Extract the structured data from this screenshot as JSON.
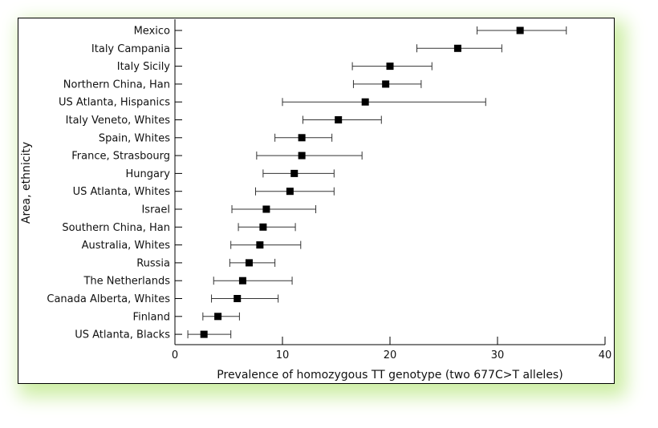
{
  "chart_data": {
    "type": "scatter",
    "title": "",
    "xlabel": "Prevalence of homozygous TT genotype (two 677C>T alleles)",
    "ylabel": "Area, ethnicity",
    "xlim": [
      0,
      40
    ],
    "xticks": [
      0,
      10,
      20,
      30,
      40
    ],
    "grid": false,
    "points": [
      {
        "label": "Mexico",
        "value": 32.1,
        "lower": 28.1,
        "upper": 36.4
      },
      {
        "label": "Italy Campania",
        "value": 26.3,
        "lower": 22.5,
        "upper": 30.4
      },
      {
        "label": "Italy Sicily",
        "value": 20.0,
        "lower": 16.5,
        "upper": 23.9
      },
      {
        "label": "Northern China, Han",
        "value": 19.6,
        "lower": 16.6,
        "upper": 22.9
      },
      {
        "label": "US Atlanta, Hispanics",
        "value": 17.7,
        "lower": 10.0,
        "upper": 28.9
      },
      {
        "label": "Italy Veneto, Whites",
        "value": 15.2,
        "lower": 11.9,
        "upper": 19.2
      },
      {
        "label": "Spain, Whites",
        "value": 11.8,
        "lower": 9.3,
        "upper": 14.6
      },
      {
        "label": "France, Strasbourg",
        "value": 11.8,
        "lower": 7.6,
        "upper": 17.4
      },
      {
        "label": "Hungary",
        "value": 11.1,
        "lower": 8.2,
        "upper": 14.8
      },
      {
        "label": "US Atlanta, Whites",
        "value": 10.7,
        "lower": 7.5,
        "upper": 14.8
      },
      {
        "label": "Israel",
        "value": 8.5,
        "lower": 5.3,
        "upper": 13.1
      },
      {
        "label": "Southern China, Han",
        "value": 8.2,
        "lower": 5.9,
        "upper": 11.2
      },
      {
        "label": "Australia, Whites",
        "value": 7.9,
        "lower": 5.2,
        "upper": 11.7
      },
      {
        "label": "Russia",
        "value": 6.9,
        "lower": 5.1,
        "upper": 9.3
      },
      {
        "label": "The Netherlands",
        "value": 6.3,
        "lower": 3.6,
        "upper": 10.9
      },
      {
        "label": "Canada Alberta, Whites",
        "value": 5.8,
        "lower": 3.4,
        "upper": 9.6
      },
      {
        "label": "Finland",
        "value": 4.0,
        "lower": 2.6,
        "upper": 6.0
      },
      {
        "label": "US Atlanta, Blacks",
        "value": 2.7,
        "lower": 1.2,
        "upper": 5.2
      }
    ]
  }
}
